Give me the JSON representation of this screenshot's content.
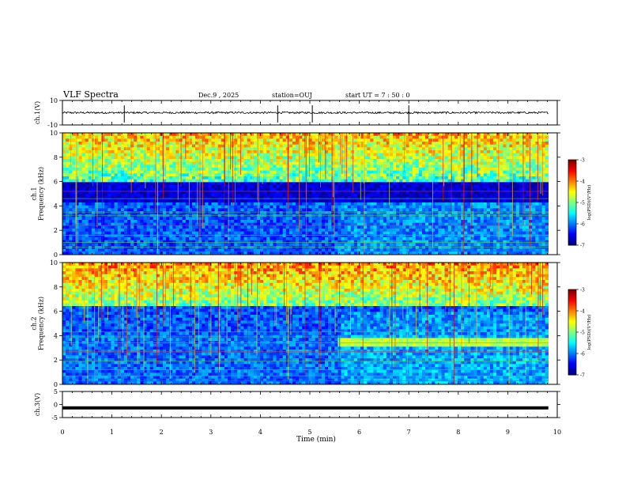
{
  "header": {
    "title": "VLF Spectra",
    "date": "Dec.9 , 2025",
    "station": "station=OUJ",
    "start": "start UT =  7 : 50 : 0"
  },
  "chart_data": [
    {
      "type": "line",
      "name": "ch1-waveform",
      "ylabel": "ch.1(V)",
      "ylim": [
        -10,
        10
      ],
      "yticks": [
        "10",
        "-10"
      ],
      "baseline": 0,
      "spikes_min": [
        1.25,
        4.35,
        5.05,
        7.0
      ],
      "xlim": [
        0,
        10
      ]
    },
    {
      "type": "heatmap",
      "name": "ch1-spectrogram",
      "ylabel": "ch.1\nFrequency (kHz)",
      "ylim": [
        0,
        10
      ],
      "yticks": [
        "10",
        "8",
        "6",
        "4",
        "2",
        "0"
      ],
      "colorbar": {
        "label": "log(PSD)(V²/Hz)",
        "range": [
          -7,
          -3
        ],
        "ticks": [
          "-3",
          "-4",
          "-5",
          "-6",
          "-7"
        ]
      },
      "data_end_min": 9.82
    },
    {
      "type": "heatmap",
      "name": "ch2-spectrogram",
      "ylabel": "ch.2\nFrequency (kHz)",
      "ylim": [
        0,
        10
      ],
      "yticks": [
        "10",
        "8",
        "6",
        "4",
        "2",
        "0"
      ],
      "colorbar": {
        "label": "log(PSD)(V²/Hz)",
        "range": [
          -7,
          -3
        ],
        "ticks": [
          "-3",
          "-4",
          "-5",
          "-6",
          "-7"
        ]
      },
      "data_end_min": 9.82
    },
    {
      "type": "line",
      "name": "ch3-waveform",
      "ylabel": "ch.3(V)",
      "ylim": [
        -5,
        5
      ],
      "yticks": [
        "5",
        "0",
        "-5"
      ],
      "baseline": -1.3,
      "xlim": [
        0,
        10
      ]
    }
  ],
  "xaxis": {
    "label": "Time (min)",
    "ticks": [
      "0",
      "1",
      "2",
      "3",
      "4",
      "5",
      "6",
      "7",
      "8",
      "9",
      "10"
    ]
  },
  "colors": {
    "bg_low": "#000060",
    "line": "#000000"
  }
}
